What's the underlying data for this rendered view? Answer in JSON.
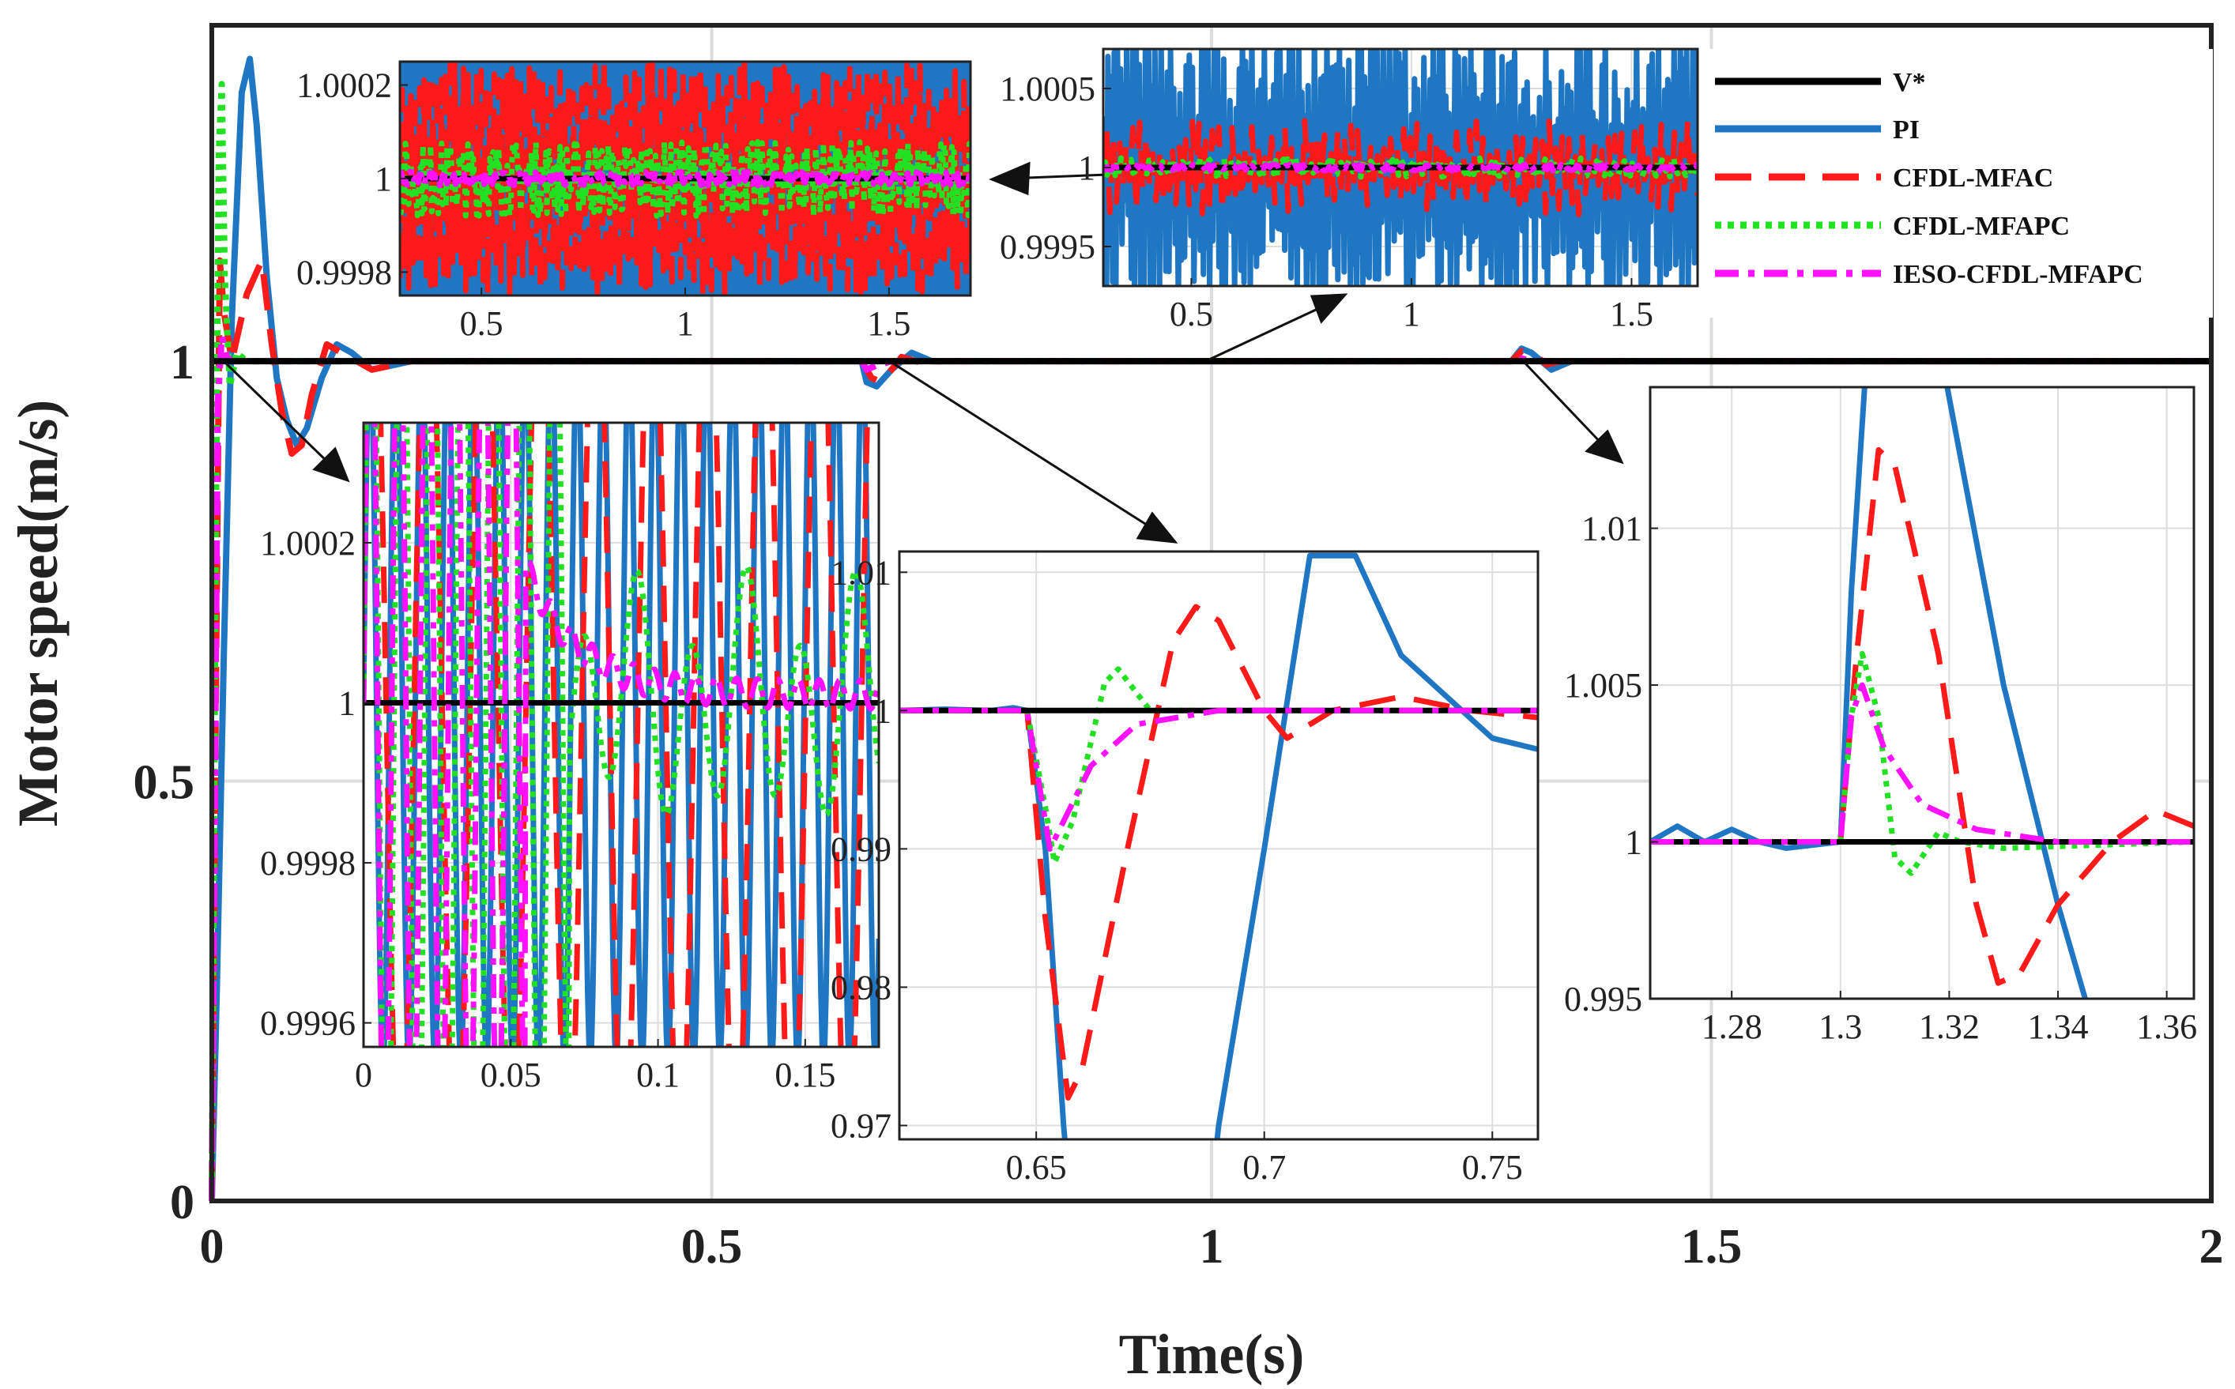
{
  "chart_data": {
    "type": "line",
    "title": "",
    "xlabel": "Time(s)",
    "ylabel": "Motor speed(m/s)",
    "xlim": [
      0,
      2
    ],
    "ylim": [
      0,
      1.4
    ],
    "xticks": [
      "0",
      "0.5",
      "1",
      "1.5",
      "2"
    ],
    "yticks": [
      "0",
      "0.5",
      "1"
    ],
    "grid": true,
    "legend": {
      "placement": "top-right",
      "entries": [
        "V*",
        "PI",
        "CFDL-MFAC",
        "CFDL-MFAPC",
        "IESO-CFDL-MFAPC"
      ]
    },
    "series": [
      {
        "name": "V*",
        "color": "#000000",
        "style": "solid",
        "points": [
          [
            0,
            1
          ],
          [
            2,
            1
          ]
        ]
      },
      {
        "name": "PI",
        "color": "#1f77c4",
        "style": "solid",
        "points": [
          [
            0,
            0
          ],
          [
            0.005,
            0.25
          ],
          [
            0.012,
            0.65
          ],
          [
            0.02,
            1.05
          ],
          [
            0.03,
            1.32
          ],
          [
            0.038,
            1.36
          ],
          [
            0.045,
            1.28
          ],
          [
            0.055,
            1.1
          ],
          [
            0.065,
            0.98
          ],
          [
            0.075,
            0.93
          ],
          [
            0.085,
            0.9
          ],
          [
            0.095,
            0.92
          ],
          [
            0.11,
            0.98
          ],
          [
            0.125,
            1.02
          ],
          [
            0.14,
            1.01
          ],
          [
            0.16,
            0.99
          ],
          [
            0.2,
            1.0
          ],
          [
            0.65,
            1.0
          ],
          [
            0.655,
            0.975
          ],
          [
            0.665,
            0.97
          ],
          [
            0.68,
            0.99
          ],
          [
            0.7,
            1.01
          ],
          [
            0.72,
            1.0
          ],
          [
            1.3,
            1.0
          ],
          [
            1.31,
            1.015
          ],
          [
            1.32,
            1.01
          ],
          [
            1.34,
            0.99
          ],
          [
            1.36,
            1.0
          ],
          [
            2,
            1.0
          ]
        ]
      },
      {
        "name": "CFDL-MFAC",
        "color": "#ff1a1a",
        "style": "dashed",
        "points": [
          [
            0,
            0
          ],
          [
            0.004,
            0.6
          ],
          [
            0.008,
            1.12
          ],
          [
            0.012,
            1.06
          ],
          [
            0.02,
            1.0
          ],
          [
            0.035,
            1.08
          ],
          [
            0.05,
            1.12
          ],
          [
            0.06,
            1.02
          ],
          [
            0.07,
            0.94
          ],
          [
            0.08,
            0.89
          ],
          [
            0.09,
            0.9
          ],
          [
            0.1,
            0.96
          ],
          [
            0.115,
            1.02
          ],
          [
            0.13,
            1.01
          ],
          [
            0.16,
            0.99
          ],
          [
            0.2,
            1.0
          ],
          [
            0.65,
            1.0
          ],
          [
            0.66,
            0.98
          ],
          [
            0.67,
            0.975
          ],
          [
            0.69,
            1.005
          ],
          [
            0.71,
            0.998
          ],
          [
            0.73,
            1.0
          ],
          [
            1.3,
            1.0
          ],
          [
            1.31,
            1.012
          ],
          [
            1.325,
            1.006
          ],
          [
            1.335,
            0.996
          ],
          [
            1.35,
            1.0
          ],
          [
            2,
            1.0
          ]
        ]
      },
      {
        "name": "CFDL-MFAPC",
        "color": "#22e022",
        "style": "dotted",
        "points": [
          [
            0,
            0
          ],
          [
            0.004,
            0.8
          ],
          [
            0.007,
            1.25
          ],
          [
            0.01,
            1.33
          ],
          [
            0.013,
            1.1
          ],
          [
            0.018,
            0.97
          ],
          [
            0.025,
            1.01
          ],
          [
            0.035,
            1.0
          ],
          [
            2,
            1.0
          ]
        ]
      },
      {
        "name": "IESO-CFDL-MFAPC",
        "color": "#ff11ff",
        "style": "dashdot",
        "points": [
          [
            0,
            0
          ],
          [
            0.006,
            0.95
          ],
          [
            0.01,
            1.03
          ],
          [
            0.015,
            1.005
          ],
          [
            0.02,
            1.0
          ],
          [
            0.65,
            1.0
          ],
          [
            0.655,
            0.99
          ],
          [
            0.665,
            0.995
          ],
          [
            0.68,
            1.0
          ],
          [
            1.3,
            1.0
          ],
          [
            1.305,
            1.005
          ],
          [
            1.32,
            1.0
          ],
          [
            2,
            1.0
          ]
        ]
      }
    ],
    "insets": [
      {
        "name": "inset-a",
        "xlim": [
          0.3,
          1.7
        ],
        "ylim": [
          0.99975,
          1.00025
        ],
        "xticks": [
          "0.5",
          "1",
          "1.5"
        ],
        "yticks": [
          "0.9998",
          "1",
          "1.0002"
        ]
      },
      {
        "name": "inset-b",
        "xlim": [
          0.3,
          1.65
        ],
        "ylim": [
          0.99925,
          1.00075
        ],
        "xticks": [
          "0.5",
          "1",
          "1.5"
        ],
        "yticks": [
          "0.9995",
          "1",
          "1.0005"
        ]
      },
      {
        "name": "inset-c",
        "xlim": [
          0,
          0.175
        ],
        "ylim": [
          0.99957,
          1.00035
        ],
        "xticks": [
          "0",
          "0.05",
          "0.1",
          "0.15"
        ],
        "yticks": [
          "0.9996",
          "0.9998",
          "1",
          "1.0002"
        ]
      },
      {
        "name": "inset-d",
        "xlim": [
          0.62,
          0.76
        ],
        "ylim": [
          0.969,
          1.0115
        ],
        "xticks": [
          "0.65",
          "0.7",
          "0.75"
        ],
        "yticks": [
          "0.97",
          "0.98",
          "0.99",
          "1",
          "1.01"
        ]
      },
      {
        "name": "inset-e",
        "xlim": [
          1.265,
          1.365
        ],
        "ylim": [
          0.995,
          1.0145
        ],
        "xticks": [
          "1.28",
          "1.3",
          "1.32",
          "1.34",
          "1.36"
        ],
        "yticks": [
          "0.995",
          "1",
          "1.005",
          "1.01"
        ]
      }
    ]
  }
}
